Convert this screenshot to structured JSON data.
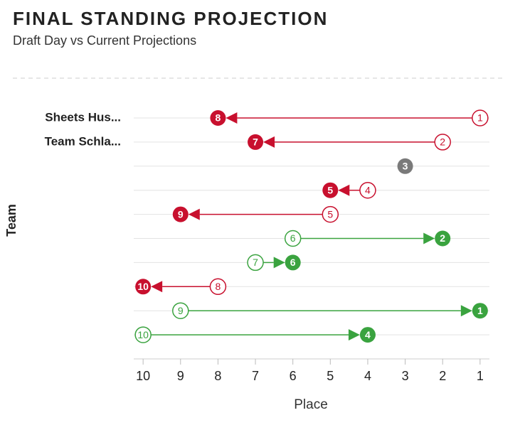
{
  "chart_data": {
    "type": "arrow",
    "title": "FINAL STANDING PROJECTION",
    "subtitle": "Draft Day vs Current Projections",
    "xlabel": "Place",
    "ylabel": "Team",
    "categories": [
      "Sheets Hus...",
      "Team Schla...",
      null,
      null,
      null,
      null,
      null,
      null,
      null,
      null
    ],
    "draft": [
      1,
      2,
      3,
      4,
      5,
      6,
      7,
      8,
      9,
      10
    ],
    "current": [
      8,
      7,
      3,
      5,
      9,
      2,
      6,
      10,
      1,
      4
    ],
    "colors": {
      "up": "#3aa33f",
      "down": "#c8102e",
      "same": "#7a7a7a"
    },
    "xlim": [
      10.25,
      0.75
    ],
    "xticks": [
      10,
      9,
      8,
      7,
      6,
      5,
      4,
      3,
      2,
      1
    ],
    "grid": true
  }
}
